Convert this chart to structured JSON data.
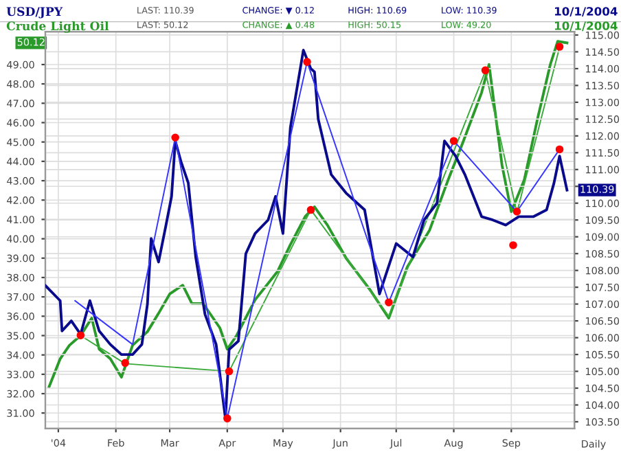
{
  "chart_data": {
    "type": "line",
    "grid": true,
    "legend": false,
    "xlabel": "Daily",
    "xlim": [
      "2003-12-25",
      "2004-10-05"
    ],
    "xticks": [
      {
        "value": "2004-01-01",
        "label": "'04"
      },
      {
        "value": "2004-02-01",
        "label": "Feb"
      },
      {
        "value": "2004-03-01",
        "label": "Mar"
      },
      {
        "value": "2004-04-01",
        "label": "Apr"
      },
      {
        "value": "2004-05-01",
        "label": "May"
      },
      {
        "value": "2004-06-01",
        "label": "Jun"
      },
      {
        "value": "2004-07-01",
        "label": "Jul"
      },
      {
        "value": "2004-08-01",
        "label": "Aug"
      },
      {
        "value": "2004-09-01",
        "label": "Sep"
      }
    ],
    "ylim": [
      30.2,
      50.7
    ],
    "yticks": [
      {
        "value": 31,
        "label": "31.00"
      },
      {
        "value": 32,
        "label": "32.00"
      },
      {
        "value": 33,
        "label": "33.00"
      },
      {
        "value": 34,
        "label": "34.00"
      },
      {
        "value": 35,
        "label": "35.00"
      },
      {
        "value": 36,
        "label": "36.00"
      },
      {
        "value": 37,
        "label": "37.00"
      },
      {
        "value": 38,
        "label": "38.00"
      },
      {
        "value": 39,
        "label": "39.00"
      },
      {
        "value": 40,
        "label": "40.00"
      },
      {
        "value": 41,
        "label": "41.00"
      },
      {
        "value": 42,
        "label": "42.00"
      },
      {
        "value": 43,
        "label": "43.00"
      },
      {
        "value": 44,
        "label": "44.00"
      },
      {
        "value": 45,
        "label": "45.00"
      },
      {
        "value": 46,
        "label": "46.00"
      },
      {
        "value": 47,
        "label": "47.00"
      },
      {
        "value": 48,
        "label": "48.00"
      },
      {
        "value": 49,
        "label": "49.00"
      }
    ],
    "y2lim": [
      103.3,
      115.1
    ],
    "y2ticks": [
      {
        "value": 103.5,
        "label": "103.50"
      },
      {
        "value": 104,
        "label": "104.00"
      },
      {
        "value": 104.5,
        "label": "104.50"
      },
      {
        "value": 105,
        "label": "105.00"
      },
      {
        "value": 105.5,
        "label": "105.50"
      },
      {
        "value": 106,
        "label": "106.00"
      },
      {
        "value": 106.5,
        "label": "106.50"
      },
      {
        "value": 107,
        "label": "107.00"
      },
      {
        "value": 107.5,
        "label": "107.50"
      },
      {
        "value": 108,
        "label": "108.00"
      },
      {
        "value": 108.5,
        "label": "108.50"
      },
      {
        "value": 109,
        "label": "109.00"
      },
      {
        "value": 109.5,
        "label": "109.50"
      },
      {
        "value": 110,
        "label": "110.00"
      },
      {
        "value": 110.5,
        "label": null
      },
      {
        "value": 111,
        "label": "111.00"
      },
      {
        "value": 111.5,
        "label": "111.50"
      },
      {
        "value": 112,
        "label": "112.00"
      },
      {
        "value": 112.5,
        "label": "112.50"
      },
      {
        "value": 113,
        "label": "113.00"
      },
      {
        "value": 113.5,
        "label": "113.50"
      },
      {
        "value": 114,
        "label": "114.00"
      },
      {
        "value": 114.5,
        "label": "114.50"
      },
      {
        "value": 115,
        "label": "115.00"
      }
    ],
    "annotations": [
      "LAST: 110.39",
      "CHANGE: ▼ 0.12",
      "HIGH: 110.69",
      "LOW: 110.39",
      "10/1/2004",
      "LAST: 50.12",
      "CHANGE: ▲ 0.48",
      "HIGH: 50.15",
      "LOW: 49.20",
      "10/1/2004",
      "110.39",
      "50.12"
    ],
    "series": [
      {
        "name": "USD/JPY",
        "axis": "y2",
        "color": "#0a0a8c",
        "x": [
          "2003-12-25",
          "2004-01-02",
          "2004-01-03",
          "2004-01-08",
          "2004-01-13",
          "2004-01-18",
          "2004-01-23",
          "2004-01-29",
          "2004-02-04",
          "2004-02-10",
          "2004-02-15",
          "2004-02-18",
          "2004-02-20",
          "2004-02-24",
          "2004-02-28",
          "2004-03-02",
          "2004-03-04",
          "2004-03-07",
          "2004-03-11",
          "2004-03-15",
          "2004-03-20",
          "2004-03-26",
          "2004-03-31",
          "2004-04-02",
          "2004-04-07",
          "2004-04-11",
          "2004-04-16",
          "2004-04-23",
          "2004-04-27",
          "2004-05-01",
          "2004-05-05",
          "2004-05-12",
          "2004-05-16",
          "2004-05-18",
          "2004-05-20",
          "2004-05-27",
          "2004-06-04",
          "2004-06-14",
          "2004-06-22",
          "2004-07-01",
          "2004-07-10",
          "2004-07-16",
          "2004-07-23",
          "2004-07-27",
          "2004-08-02",
          "2004-08-07",
          "2004-08-16",
          "2004-08-22",
          "2004-08-29",
          "2004-09-05",
          "2004-09-13",
          "2004-09-20",
          "2004-09-24",
          "2004-09-27",
          "2004-10-01"
        ],
        "values": [
          107.55,
          107.1,
          106.2,
          106.5,
          106.1,
          107.1,
          106.2,
          105.8,
          105.5,
          105.5,
          105.8,
          107.0,
          108.95,
          108.25,
          109.35,
          110.2,
          111.85,
          111.25,
          110.6,
          108.4,
          106.7,
          105.8,
          103.6,
          105.65,
          105.9,
          108.5,
          109.1,
          109.5,
          110.2,
          109.1,
          112.25,
          114.55,
          114.0,
          113.9,
          112.5,
          110.85,
          110.3,
          109.8,
          107.3,
          108.8,
          108.4,
          109.5,
          110.0,
          111.85,
          111.4,
          110.85,
          109.6,
          109.5,
          109.35,
          109.6,
          109.6,
          109.8,
          110.6,
          111.4,
          110.39
        ]
      },
      {
        "name": "Crude Light Oil",
        "axis": "y",
        "color": "#2a9a2a",
        "x": [
          "2003-12-27",
          "2004-01-02",
          "2004-01-07",
          "2004-01-13",
          "2004-01-19",
          "2004-01-23",
          "2004-01-29",
          "2004-02-04",
          "2004-02-10",
          "2004-02-18",
          "2004-02-24",
          "2004-03-01",
          "2004-03-08",
          "2004-03-13",
          "2004-03-19",
          "2004-03-28",
          "2004-04-01",
          "2004-04-06",
          "2004-04-16",
          "2004-04-28",
          "2004-05-05",
          "2004-05-13",
          "2004-05-18",
          "2004-05-25",
          "2004-06-04",
          "2004-06-17",
          "2004-06-27",
          "2004-07-07",
          "2004-07-19",
          "2004-07-29",
          "2004-08-06",
          "2004-08-16",
          "2004-08-20",
          "2004-08-27",
          "2004-09-01",
          "2004-09-08",
          "2004-09-15",
          "2004-09-22",
          "2004-09-26",
          "2004-10-01"
        ],
        "values": [
          32.35,
          33.8,
          34.5,
          35.0,
          35.9,
          34.3,
          33.8,
          32.85,
          34.5,
          35.2,
          36.15,
          37.15,
          37.6,
          36.65,
          36.65,
          35.4,
          34.3,
          35.0,
          36.85,
          38.3,
          39.7,
          41.15,
          41.65,
          40.7,
          39.0,
          37.35,
          35.9,
          38.55,
          40.45,
          43.05,
          45.0,
          47.55,
          49.0,
          43.8,
          41.4,
          43.05,
          46.15,
          49.0,
          50.2,
          50.12
        ]
      },
      {
        "axis": "y2",
        "color": "#3535ff",
        "x": [
          "2004-01-10",
          "2004-02-10",
          "2004-03-04",
          "2004-04-01",
          "2004-05-14",
          "2004-06-27",
          "2004-08-01",
          "2004-09-04",
          "2004-09-27"
        ],
        "values": [
          107.1,
          105.8,
          111.95,
          103.6,
          114.2,
          107.05,
          111.85,
          109.75,
          111.6
        ]
      },
      {
        "axis": "y",
        "color": "#3aaa3a",
        "x": [
          "2004-01-13",
          "2004-02-06",
          "2004-04-02",
          "2004-05-16",
          "2004-06-27",
          "2004-08-18",
          "2004-09-04",
          "2004-09-27"
        ],
        "values": [
          35.0,
          33.55,
          33.15,
          41.5,
          36.0,
          48.65,
          41.35,
          49.9
        ]
      },
      {
        "type": "scatter",
        "axis": "y2",
        "color": "#ff0000",
        "marker": "circle",
        "x": [
          "2004-01-13",
          "2004-02-06",
          "2004-03-04",
          "2004-04-01",
          "2004-04-02",
          "2004-05-14",
          "2004-05-16",
          "2004-06-27",
          "2004-08-01",
          "2004-08-18",
          "2004-09-02",
          "2004-09-04",
          "2004-09-27",
          "2004-09-27"
        ],
        "values": [
          106.07,
          105.25,
          111.95,
          103.6,
          105.0,
          114.2,
          109.8,
          107.05,
          111.85,
          113.95,
          108.75,
          109.75,
          111.6,
          114.65
        ]
      }
    ]
  }
}
